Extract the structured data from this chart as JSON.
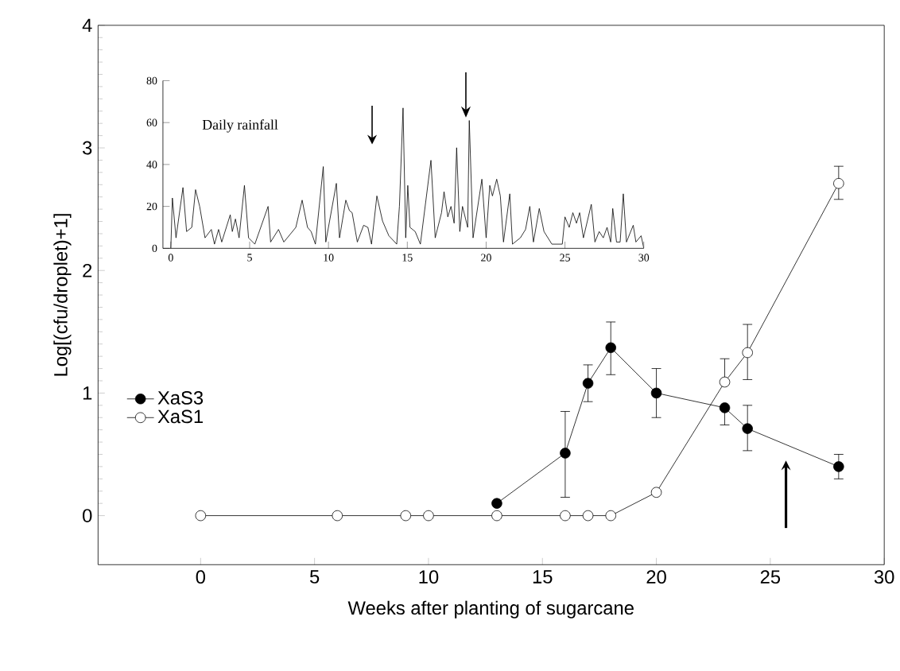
{
  "chart_data": [
    {
      "type": "line",
      "xlabel": "Weeks after planting of sugarcane",
      "ylabel": "Log[(cfu/droplet)+1]",
      "xlim": [
        -4.5,
        30
      ],
      "ylim": [
        -0.4,
        4
      ],
      "xticks": [
        0,
        5,
        10,
        15,
        20,
        25,
        30
      ],
      "yticks": [
        0,
        1,
        2,
        3,
        4
      ],
      "legend": "left",
      "marker": "circle",
      "line_style": "solid",
      "grid": false,
      "series": [
        {
          "name": "XaS3",
          "color": "#000000",
          "x": [
            13,
            16,
            17,
            18,
            20,
            23,
            24,
            28
          ],
          "values": [
            0.1,
            0.51,
            1.08,
            1.37,
            1.0,
            0.88,
            0.71,
            0.4
          ],
          "errors": [
            null,
            [
              0.15,
              0.85
            ],
            [
              0.93,
              1.23
            ],
            [
              1.15,
              1.58
            ],
            [
              0.8,
              1.2
            ],
            [
              0.74,
              0.88
            ],
            [
              0.53,
              0.9
            ],
            [
              0.3,
              0.5
            ]
          ]
        },
        {
          "name": "XaS1",
          "color": "#ffffff",
          "x": [
            0,
            6,
            9,
            10,
            13,
            16,
            17,
            18,
            20,
            23,
            24,
            28
          ],
          "values": [
            0,
            0,
            0,
            0,
            0,
            0,
            0,
            0,
            0.19,
            1.09,
            1.33,
            2.71
          ],
          "errors": [
            null,
            null,
            null,
            null,
            null,
            null,
            null,
            null,
            null,
            [
              1.09,
              1.28
            ],
            [
              1.11,
              1.56
            ],
            [
              2.58,
              2.85
            ]
          ]
        }
      ]
    },
    {
      "type": "line",
      "title": "Daily rainfall",
      "xlim": [
        -0.5,
        30
      ],
      "ylim": [
        0,
        80
      ],
      "xticks": [
        0,
        5,
        10,
        15,
        20,
        25,
        30
      ],
      "yticks": [
        0,
        20,
        40,
        60,
        80
      ],
      "legend": false,
      "grid": false,
      "marker": "none",
      "series": [
        {
          "color": "#000000",
          "x": [
            0,
            0.1,
            0.33,
            0.77,
            1.0,
            1.33,
            1.57,
            1.83,
            2.17,
            2.57,
            2.77,
            3.03,
            3.23,
            3.77,
            3.9,
            4.1,
            4.33,
            4.67,
            4.93,
            5.33,
            6.17,
            6.33,
            6.83,
            7.17,
            7.93,
            8.33,
            8.67,
            8.9,
            9.17,
            9.67,
            9.83,
            10.5,
            10.7,
            11.1,
            11.33,
            11.5,
            11.83,
            12.23,
            12.5,
            12.73,
            13.07,
            13.43,
            13.83,
            14.33,
            14.5,
            14.73,
            14.9,
            15.03,
            15.17,
            15.5,
            15.83,
            16.5,
            16.77,
            17.17,
            17.33,
            17.57,
            17.77,
            17.97,
            18.13,
            18.33,
            18.5,
            18.83,
            18.93,
            19.17,
            19.73,
            20.0,
            20.23,
            20.4,
            20.67,
            20.9,
            21.1,
            21.5,
            21.67,
            22.17,
            22.5,
            22.77,
            23.0,
            23.37,
            23.67,
            24.17,
            24.83,
            25.0,
            25.27,
            25.5,
            25.73,
            25.93,
            26.17,
            26.67,
            26.9,
            27.17,
            27.43,
            27.67,
            27.9,
            28.03,
            28.27,
            28.5,
            28.7,
            28.9,
            29.33,
            29.5,
            29.83,
            30
          ],
          "values": [
            0,
            24,
            5,
            29,
            8,
            10,
            28,
            20,
            5,
            9,
            2,
            9,
            3,
            16,
            8,
            14,
            5,
            30,
            5,
            2,
            20,
            3,
            9,
            3,
            10,
            23,
            10,
            8,
            2,
            39,
            3,
            31,
            5,
            23,
            18,
            17,
            3,
            11,
            10,
            2,
            25,
            13,
            6,
            2,
            20,
            67,
            5,
            30,
            10,
            8,
            2,
            42,
            5,
            17,
            27,
            15,
            20,
            12,
            48,
            8,
            20,
            10,
            61,
            5,
            33,
            5,
            30,
            25,
            33,
            25,
            3,
            26,
            2,
            5,
            9,
            20,
            3,
            19,
            8,
            2,
            2,
            15,
            10,
            17,
            12,
            17,
            5,
            21,
            3,
            8,
            5,
            10,
            3,
            19,
            3,
            3,
            26,
            3,
            11,
            3,
            6,
            0
          ]
        }
      ]
    }
  ]
}
